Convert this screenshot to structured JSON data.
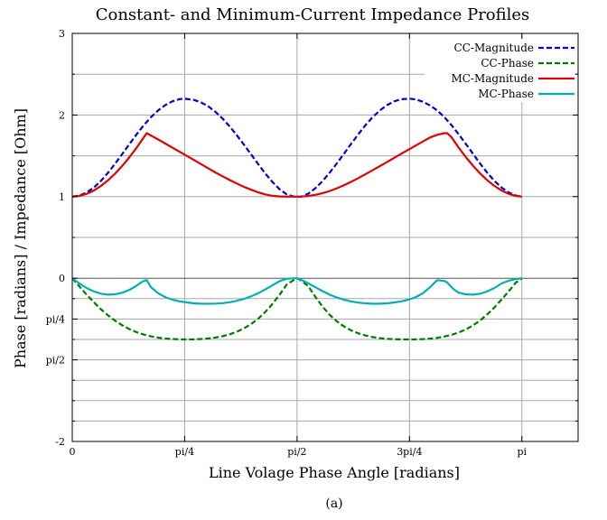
{
  "chart_data": {
    "type": "line",
    "title": "Constant- and Minimum-Current Impedance Profiles",
    "xlabel": "Line Volage Phase Angle [radians]",
    "ylabel": "Phase [radians] / Impedance [Ohm]",
    "caption": "(a)",
    "xlim": [
      0,
      3.5343
    ],
    "ylim": [
      -2,
      3
    ],
    "grid": true,
    "legend_position": "top-right",
    "x_ticks": [
      {
        "value": 0,
        "label": "0"
      },
      {
        "value": 0.7854,
        "label": "pi/4"
      },
      {
        "value": 1.5708,
        "label": "pi/2"
      },
      {
        "value": 2.3562,
        "label": "3pi/4"
      },
      {
        "value": 3.1416,
        "label": "pi"
      }
    ],
    "y_ticks": [
      {
        "value": -2,
        "label": "-2"
      },
      {
        "value": -1,
        "label": "pi/2"
      },
      {
        "value": -0.5,
        "label": "pi/4"
      },
      {
        "value": 0,
        "label": "0"
      },
      {
        "value": 1,
        "label": "1"
      },
      {
        "value": 2,
        "label": "2"
      },
      {
        "value": 3,
        "label": "3"
      }
    ],
    "y_minor_ticks": [
      -1.75,
      -1.5,
      -1.25,
      -0.75,
      -0.25,
      0.5,
      1.5,
      2.5
    ],
    "series": [
      {
        "name": "CC-Magnitude",
        "color": "#0000cc",
        "dash": "dashed",
        "x": [
          0,
          0.05,
          0.1,
          0.15,
          0.2,
          0.25,
          0.3,
          0.35,
          0.4,
          0.45,
          0.5,
          0.55,
          0.6,
          0.65,
          0.7,
          0.75,
          0.7854,
          0.85,
          0.9,
          0.95,
          1.0,
          1.05,
          1.1,
          1.15,
          1.2,
          1.25,
          1.3,
          1.35,
          1.4,
          1.45,
          1.5,
          1.55,
          1.5708,
          1.6,
          1.65,
          1.7,
          1.75,
          1.8,
          1.85,
          1.9,
          1.95,
          2.0,
          2.05,
          2.1,
          2.15,
          2.2,
          2.25,
          2.3,
          2.3562,
          2.4,
          2.45,
          2.5,
          2.55,
          2.6,
          2.65,
          2.7,
          2.75,
          2.8,
          2.85,
          2.9,
          2.95,
          3.0,
          3.05,
          3.1,
          3.1416
        ],
        "y": [
          1.0,
          1.013,
          1.05,
          1.111,
          1.193,
          1.292,
          1.404,
          1.524,
          1.646,
          1.764,
          1.875,
          1.973,
          2.056,
          2.122,
          2.168,
          2.195,
          2.2,
          2.185,
          2.155,
          2.106,
          2.04,
          1.957,
          1.86,
          1.752,
          1.636,
          1.516,
          1.396,
          1.281,
          1.177,
          1.089,
          1.025,
          1.0,
          1.0,
          1.0,
          1.037,
          1.105,
          1.193,
          1.296,
          1.41,
          1.529,
          1.65,
          1.768,
          1.878,
          1.976,
          2.058,
          2.122,
          2.168,
          2.194,
          2.2,
          2.191,
          2.163,
          2.117,
          2.056,
          1.973,
          1.875,
          1.764,
          1.646,
          1.524,
          1.404,
          1.292,
          1.193,
          1.111,
          1.05,
          1.013,
          1.0
        ]
      },
      {
        "name": "CC-Phase",
        "color": "#007a00",
        "dash": "dashed",
        "x": [
          0,
          0.05,
          0.1,
          0.15,
          0.2,
          0.25,
          0.3,
          0.35,
          0.4,
          0.45,
          0.5,
          0.55,
          0.6,
          0.65,
          0.7,
          0.75,
          0.7854,
          0.85,
          0.9,
          0.95,
          1.0,
          1.05,
          1.1,
          1.15,
          1.2,
          1.25,
          1.3,
          1.35,
          1.4,
          1.45,
          1.5,
          1.55,
          1.5708,
          1.6,
          1.65,
          1.7,
          1.75,
          1.8,
          1.85,
          1.9,
          1.95,
          2.0,
          2.05,
          2.1,
          2.15,
          2.2,
          2.25,
          2.3,
          2.3562,
          2.4,
          2.45,
          2.5,
          2.55,
          2.6,
          2.65,
          2.7,
          2.75,
          2.8,
          2.85,
          2.9,
          2.95,
          3.0,
          3.05,
          3.1,
          3.1416
        ],
        "y": [
          0.0,
          -0.101,
          -0.2,
          -0.293,
          -0.379,
          -0.455,
          -0.521,
          -0.577,
          -0.624,
          -0.661,
          -0.69,
          -0.712,
          -0.728,
          -0.739,
          -0.745,
          -0.749,
          -0.75,
          -0.749,
          -0.745,
          -0.738,
          -0.727,
          -0.71,
          -0.687,
          -0.655,
          -0.614,
          -0.561,
          -0.494,
          -0.412,
          -0.313,
          -0.199,
          -0.072,
          -0.021,
          0.0,
          -0.03,
          -0.1,
          -0.232,
          -0.351,
          -0.45,
          -0.53,
          -0.592,
          -0.64,
          -0.676,
          -0.702,
          -0.721,
          -0.734,
          -0.742,
          -0.747,
          -0.749,
          -0.75,
          -0.749,
          -0.746,
          -0.74,
          -0.73,
          -0.715,
          -0.694,
          -0.665,
          -0.627,
          -0.578,
          -0.517,
          -0.443,
          -0.357,
          -0.261,
          -0.158,
          -0.053,
          0.0
        ]
      },
      {
        "name": "MC-Magnitude",
        "color": "#e00000",
        "dash": "solid",
        "x": [
          0,
          0.05,
          0.1,
          0.15,
          0.2,
          0.25,
          0.3,
          0.35,
          0.4,
          0.45,
          0.5,
          0.52,
          0.55,
          0.6,
          0.65,
          0.7,
          0.75,
          0.8,
          0.85,
          0.9,
          0.95,
          1.0,
          1.05,
          1.1,
          1.15,
          1.2,
          1.25,
          1.3,
          1.35,
          1.4,
          1.45,
          1.5,
          1.5708,
          1.6,
          1.65,
          1.7,
          1.75,
          1.8,
          1.85,
          1.9,
          1.95,
          2.0,
          2.05,
          2.1,
          2.15,
          2.2,
          2.25,
          2.3,
          2.35,
          2.4,
          2.45,
          2.5,
          2.55,
          2.6,
          2.62,
          2.65,
          2.7,
          2.75,
          2.8,
          2.85,
          2.9,
          2.95,
          3.0,
          3.05,
          3.1,
          3.1416
        ],
        "y": [
          1.0,
          1.008,
          1.033,
          1.074,
          1.13,
          1.2,
          1.283,
          1.378,
          1.484,
          1.6,
          1.727,
          1.778,
          1.749,
          1.7,
          1.65,
          1.6,
          1.55,
          1.499,
          1.449,
          1.398,
          1.347,
          1.297,
          1.249,
          1.203,
          1.16,
          1.12,
          1.084,
          1.052,
          1.027,
          1.01,
          1.002,
          1.0,
          1.0,
          1.001,
          1.008,
          1.022,
          1.043,
          1.07,
          1.103,
          1.14,
          1.182,
          1.228,
          1.276,
          1.325,
          1.375,
          1.425,
          1.476,
          1.526,
          1.576,
          1.626,
          1.676,
          1.725,
          1.758,
          1.778,
          1.778,
          1.727,
          1.6,
          1.484,
          1.378,
          1.283,
          1.2,
          1.13,
          1.074,
          1.033,
          1.008,
          1.0
        ]
      },
      {
        "name": "MC-Phase",
        "color": "#00b0b0",
        "dash": "solid",
        "x": [
          0,
          0.05,
          0.1,
          0.15,
          0.2,
          0.25,
          0.3,
          0.35,
          0.4,
          0.45,
          0.48,
          0.5,
          0.52,
          0.55,
          0.6,
          0.65,
          0.7,
          0.75,
          0.8,
          0.85,
          0.9,
          0.95,
          1.0,
          1.05,
          1.1,
          1.15,
          1.2,
          1.25,
          1.3,
          1.35,
          1.4,
          1.45,
          1.5,
          1.5708,
          1.6,
          1.65,
          1.7,
          1.75,
          1.8,
          1.85,
          1.9,
          1.95,
          2.0,
          2.05,
          2.1,
          2.15,
          2.2,
          2.25,
          2.3,
          2.35,
          2.4,
          2.45,
          2.5,
          2.55,
          2.6,
          2.62,
          2.64,
          2.67,
          2.7,
          2.75,
          2.8,
          2.85,
          2.9,
          2.95,
          3.0,
          3.05,
          3.1,
          3.1416
        ],
        "y": [
          0.0,
          -0.064,
          -0.119,
          -0.161,
          -0.189,
          -0.201,
          -0.197,
          -0.177,
          -0.142,
          -0.091,
          -0.052,
          -0.033,
          -0.023,
          -0.109,
          -0.184,
          -0.231,
          -0.262,
          -0.283,
          -0.297,
          -0.307,
          -0.312,
          -0.313,
          -0.311,
          -0.305,
          -0.294,
          -0.277,
          -0.253,
          -0.221,
          -0.182,
          -0.136,
          -0.085,
          -0.034,
          -0.006,
          0.0,
          -0.02,
          -0.062,
          -0.112,
          -0.159,
          -0.202,
          -0.237,
          -0.264,
          -0.284,
          -0.299,
          -0.308,
          -0.313,
          -0.312,
          -0.307,
          -0.297,
          -0.283,
          -0.262,
          -0.231,
          -0.184,
          -0.109,
          -0.023,
          -0.033,
          -0.052,
          -0.091,
          -0.142,
          -0.177,
          -0.197,
          -0.201,
          -0.189,
          -0.161,
          -0.119,
          -0.064,
          -0.03,
          -0.01,
          0.0
        ]
      }
    ]
  }
}
